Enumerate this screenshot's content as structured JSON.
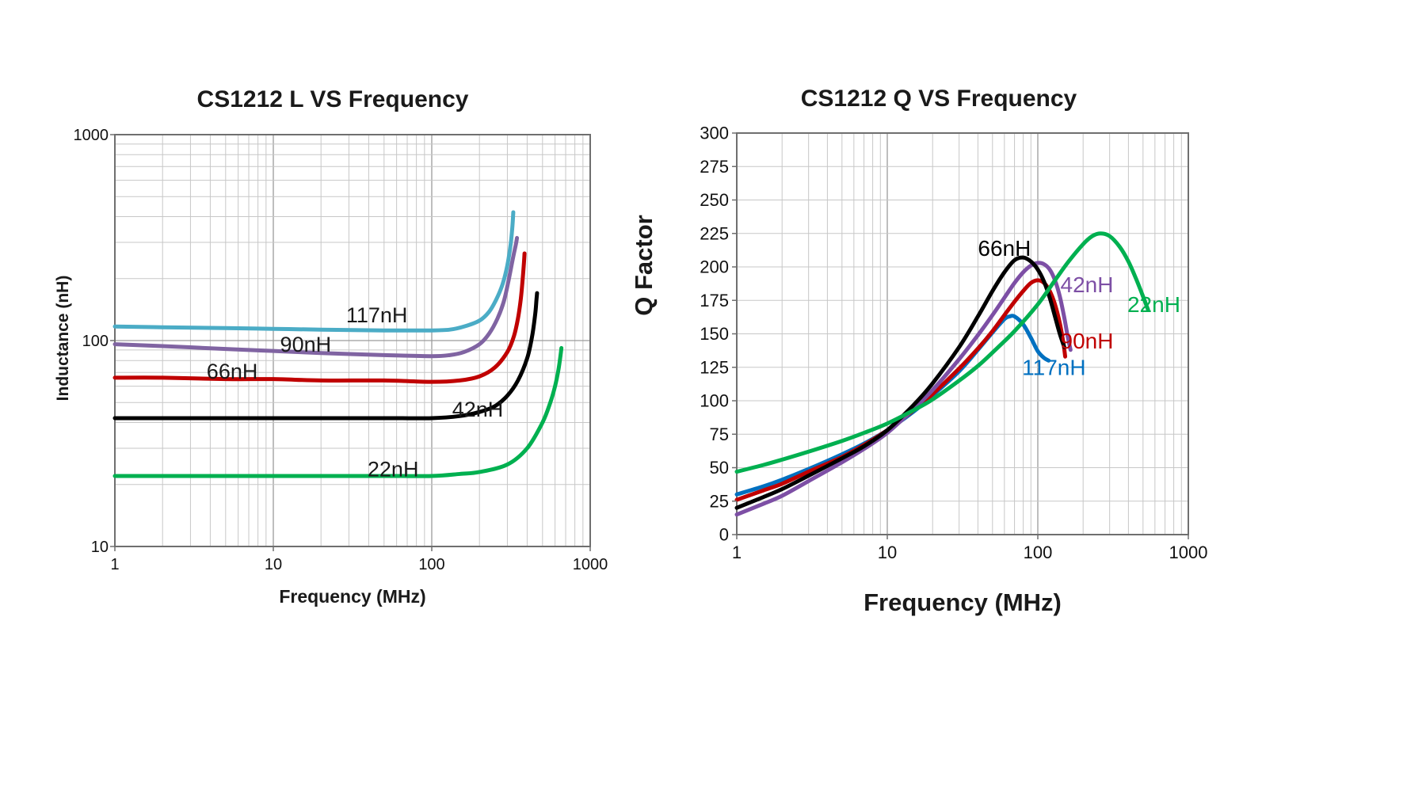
{
  "page": {
    "background": "#ffffff"
  },
  "chart_data": [
    {
      "type": "line",
      "title": "CS1212 L VS Frequency",
      "xlabel": "Frequency (MHz)",
      "ylabel": "Inductance (nH)",
      "x_scale": "log",
      "y_scale": "log",
      "xlim": [
        1,
        1000
      ],
      "ylim": [
        10,
        1000
      ],
      "x_ticks": [
        1,
        10,
        100,
        1000
      ],
      "y_ticks": [
        10,
        100,
        1000
      ],
      "grid": true,
      "legend": "none",
      "series": [
        {
          "name": "22nH",
          "color": "#00B050",
          "points": [
            [
              1,
              22
            ],
            [
              5,
              22
            ],
            [
              10,
              22
            ],
            [
              50,
              22
            ],
            [
              100,
              22
            ],
            [
              150,
              22.5
            ],
            [
              200,
              23
            ],
            [
              300,
              25
            ],
            [
              400,
              30
            ],
            [
              500,
              40
            ],
            [
              560,
              50
            ],
            [
              600,
              60
            ],
            [
              630,
              72
            ],
            [
              650,
              85
            ],
            [
              658,
              92
            ]
          ]
        },
        {
          "name": "42nH",
          "color": "#000000",
          "points": [
            [
              1,
              42
            ],
            [
              5,
              42
            ],
            [
              10,
              42
            ],
            [
              50,
              42
            ],
            [
              100,
              42
            ],
            [
              150,
              43
            ],
            [
              200,
              45
            ],
            [
              250,
              48
            ],
            [
              300,
              54
            ],
            [
              350,
              64
            ],
            [
              400,
              82
            ],
            [
              430,
              105
            ],
            [
              450,
              135
            ],
            [
              458,
              158
            ],
            [
              462,
              170
            ]
          ]
        },
        {
          "name": "66nH",
          "color": "#C00000",
          "points": [
            [
              1,
              66
            ],
            [
              2,
              66
            ],
            [
              5,
              65
            ],
            [
              10,
              65
            ],
            [
              20,
              64
            ],
            [
              50,
              64
            ],
            [
              100,
              63
            ],
            [
              150,
              64
            ],
            [
              200,
              67
            ],
            [
              250,
              74
            ],
            [
              300,
              88
            ],
            [
              330,
              105
            ],
            [
              350,
              128
            ],
            [
              365,
              160
            ],
            [
              375,
              200
            ],
            [
              382,
              240
            ],
            [
              385,
              265
            ]
          ]
        },
        {
          "name": "90nH",
          "color": "#8064A2",
          "points": [
            [
              1,
              96
            ],
            [
              2,
              94
            ],
            [
              5,
              91
            ],
            [
              10,
              89
            ],
            [
              20,
              87
            ],
            [
              50,
              85
            ],
            [
              100,
              84
            ],
            [
              130,
              85
            ],
            [
              160,
              88
            ],
            [
              200,
              96
            ],
            [
              230,
              108
            ],
            [
              260,
              128
            ],
            [
              285,
              155
            ],
            [
              305,
              195
            ],
            [
              325,
              250
            ],
            [
              340,
              295
            ],
            [
              345,
              315
            ]
          ]
        },
        {
          "name": "117nH",
          "color": "#4BACC6",
          "points": [
            [
              1,
              117
            ],
            [
              2,
              116
            ],
            [
              5,
              115
            ],
            [
              10,
              114
            ],
            [
              20,
              113
            ],
            [
              50,
              112
            ],
            [
              100,
              112
            ],
            [
              130,
              113
            ],
            [
              160,
              117
            ],
            [
              200,
              125
            ],
            [
              230,
              138
            ],
            [
              255,
              158
            ],
            [
              280,
              188
            ],
            [
              300,
              232
            ],
            [
              315,
              295
            ],
            [
              323,
              360
            ],
            [
              327,
              420
            ]
          ]
        }
      ],
      "annotations": [
        {
          "text": "117nH",
          "x": 45,
          "y": 133,
          "color": "#1a1a1a"
        },
        {
          "text": "90nH",
          "x": 16,
          "y": 96,
          "color": "#1a1a1a"
        },
        {
          "text": "66nH",
          "x": 5.5,
          "y": 71,
          "color": "#1a1a1a"
        },
        {
          "text": "42nH",
          "x": 195,
          "y": 46.5,
          "color": "#1a1a1a"
        },
        {
          "text": "22nH",
          "x": 57,
          "y": 23.8,
          "color": "#1a1a1a"
        }
      ]
    },
    {
      "type": "line",
      "title": "CS1212 Q VS Frequency",
      "xlabel": "Frequency (MHz)",
      "ylabel": "Q Factor",
      "x_scale": "log",
      "y_scale": "linear",
      "xlim": [
        1,
        1000
      ],
      "ylim": [
        0,
        300
      ],
      "x_ticks": [
        1,
        10,
        100,
        1000
      ],
      "y_ticks": [
        0,
        25,
        50,
        75,
        100,
        125,
        150,
        175,
        200,
        225,
        250,
        275,
        300
      ],
      "grid": true,
      "legend": "none",
      "series": [
        {
          "name": "117nH",
          "color": "#0070C0",
          "points": [
            [
              1,
              30
            ],
            [
              1.5,
              36
            ],
            [
              2,
              41
            ],
            [
              3,
              49
            ],
            [
              5,
              60
            ],
            [
              7,
              68
            ],
            [
              10,
              78
            ],
            [
              15,
              92
            ],
            [
              20,
              104
            ],
            [
              30,
              122
            ],
            [
              40,
              138
            ],
            [
              50,
              151
            ],
            [
              60,
              161
            ],
            [
              65,
              163
            ],
            [
              70,
              163
            ],
            [
              80,
              157
            ],
            [
              90,
              147
            ],
            [
              100,
              137
            ],
            [
              110,
              132
            ],
            [
              118,
              130
            ]
          ]
        },
        {
          "name": "90nH",
          "color": "#C00000",
          "points": [
            [
              1,
              26
            ],
            [
              1.5,
              33
            ],
            [
              2,
              38
            ],
            [
              3,
              47
            ],
            [
              5,
              58
            ],
            [
              7,
              67
            ],
            [
              10,
              78
            ],
            [
              15,
              93
            ],
            [
              20,
              105
            ],
            [
              30,
              124
            ],
            [
              40,
              139
            ],
            [
              50,
              152
            ],
            [
              60,
              164
            ],
            [
              70,
              174
            ],
            [
              80,
              182
            ],
            [
              90,
              188
            ],
            [
              100,
              190
            ],
            [
              110,
              188
            ],
            [
              120,
              182
            ],
            [
              130,
              172
            ],
            [
              140,
              158
            ],
            [
              148,
              143
            ],
            [
              152,
              133
            ]
          ]
        },
        {
          "name": "42nH",
          "color": "#7D4FA5",
          "points": [
            [
              1,
              15
            ],
            [
              1.5,
              23
            ],
            [
              2,
              29
            ],
            [
              3,
              40
            ],
            [
              5,
              54
            ],
            [
              7,
              64
            ],
            [
              10,
              76
            ],
            [
              15,
              94
            ],
            [
              20,
              108
            ],
            [
              30,
              131
            ],
            [
              40,
              149
            ],
            [
              50,
              164
            ],
            [
              60,
              177
            ],
            [
              70,
              188
            ],
            [
              80,
              196
            ],
            [
              90,
              201
            ],
            [
              100,
              203
            ],
            [
              110,
              202
            ],
            [
              120,
              198
            ],
            [
              130,
              190
            ],
            [
              140,
              178
            ],
            [
              150,
              162
            ],
            [
              158,
              148
            ],
            [
              165,
              138
            ]
          ]
        },
        {
          "name": "66nH",
          "color": "#000000",
          "points": [
            [
              1,
              20
            ],
            [
              1.5,
              28
            ],
            [
              2,
              34
            ],
            [
              3,
              44
            ],
            [
              5,
              57
            ],
            [
              7,
              66
            ],
            [
              10,
              78
            ],
            [
              15,
              97
            ],
            [
              20,
              113
            ],
            [
              30,
              140
            ],
            [
              40,
              163
            ],
            [
              50,
              182
            ],
            [
              60,
              196
            ],
            [
              70,
              205
            ],
            [
              80,
              207
            ],
            [
              90,
              204
            ],
            [
              100,
              198
            ],
            [
              110,
              189
            ],
            [
              120,
              177
            ],
            [
              130,
              163
            ],
            [
              140,
              150
            ],
            [
              150,
              140
            ]
          ]
        },
        {
          "name": "22nH",
          "color": "#00B050",
          "points": [
            [
              1,
              47
            ],
            [
              1.5,
              52
            ],
            [
              2,
              56
            ],
            [
              3,
              62
            ],
            [
              5,
              70
            ],
            [
              7,
              76
            ],
            [
              10,
              83
            ],
            [
              15,
              93
            ],
            [
              20,
              101
            ],
            [
              30,
              115
            ],
            [
              40,
              126
            ],
            [
              50,
              136
            ],
            [
              70,
              152
            ],
            [
              100,
              172
            ],
            [
              130,
              190
            ],
            [
              160,
              204
            ],
            [
              200,
              217
            ],
            [
              230,
              223
            ],
            [
              260,
              225
            ],
            [
              300,
              223
            ],
            [
              350,
              215
            ],
            [
              400,
              204
            ],
            [
              450,
              191
            ],
            [
              500,
              178
            ],
            [
              540,
              168
            ]
          ]
        }
      ],
      "annotations": [
        {
          "text": "66nH",
          "x": 60,
          "y": 214,
          "color": "#000000"
        },
        {
          "text": "42nH",
          "x": 212,
          "y": 187,
          "color": "#7D4FA5"
        },
        {
          "text": "22nH",
          "x": 590,
          "y": 172,
          "color": "#00B050"
        },
        {
          "text": "90nH",
          "x": 212,
          "y": 145,
          "color": "#C00000"
        },
        {
          "text": "117nH",
          "x": 128,
          "y": 125,
          "color": "#0070C0"
        }
      ]
    }
  ]
}
